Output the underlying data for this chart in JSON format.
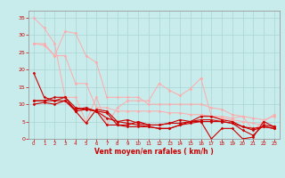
{
  "bg_color": "#c8ecec",
  "grid_color": "#aad4d4",
  "xlabel": "Vent moyen/en rafales ( km/h )",
  "xlabel_color": "#cc0000",
  "tick_color": "#cc0000",
  "xlim": [
    -0.5,
    23.5
  ],
  "ylim": [
    0,
    37
  ],
  "yticks": [
    0,
    5,
    10,
    15,
    20,
    25,
    30,
    35
  ],
  "xticks": [
    0,
    1,
    2,
    3,
    4,
    5,
    6,
    7,
    8,
    9,
    10,
    11,
    12,
    13,
    14,
    15,
    16,
    17,
    18,
    19,
    20,
    21,
    22,
    23
  ],
  "series": [
    {
      "x": [
        0,
        1,
        2,
        3,
        4,
        5,
        6,
        7,
        8,
        9,
        10,
        11,
        12,
        13,
        14,
        15,
        16,
        17,
        18,
        19,
        20,
        21,
        22,
        23
      ],
      "y": [
        35,
        32,
        27.5,
        12,
        12,
        5,
        12,
        4,
        9,
        11,
        11,
        11,
        16,
        14,
        12.5,
        14.5,
        17.5,
        6.5,
        6.5,
        6,
        6.5,
        2.5,
        5,
        7
      ],
      "color": "#ffaaaa",
      "lw": 0.7,
      "marker": "D",
      "ms": 1.5
    },
    {
      "x": [
        0,
        1,
        2,
        3,
        4,
        5,
        6,
        7,
        8,
        9,
        10,
        11,
        12,
        13,
        14,
        15,
        16,
        17,
        18,
        19,
        20,
        21,
        22,
        23
      ],
      "y": [
        27.5,
        27.5,
        24,
        31,
        30.5,
        24,
        22,
        12,
        12,
        12,
        12,
        10,
        10,
        10,
        10,
        10,
        10,
        9,
        8.5,
        7,
        6.5,
        6,
        5.5,
        6.5
      ],
      "color": "#ffaaaa",
      "lw": 0.7,
      "marker": "D",
      "ms": 1.5
    },
    {
      "x": [
        0,
        1,
        2,
        3,
        4,
        5,
        6,
        7,
        8,
        9,
        10,
        11,
        12,
        13,
        14,
        15,
        16,
        17,
        18,
        19,
        20,
        21,
        22,
        23
      ],
      "y": [
        27.5,
        27,
        24,
        24,
        16,
        16,
        9,
        9,
        8,
        8,
        8,
        8,
        8,
        7.5,
        7.5,
        7,
        7,
        6.5,
        6,
        5.5,
        5,
        4.5,
        4,
        3.5
      ],
      "color": "#ffaaaa",
      "lw": 0.7,
      "marker": "D",
      "ms": 1.5
    },
    {
      "x": [
        0,
        1,
        2,
        3,
        4,
        5,
        6,
        7,
        8,
        9,
        10,
        11,
        12,
        13,
        14,
        15,
        16,
        17,
        18,
        19,
        20,
        21,
        22,
        23
      ],
      "y": [
        19,
        12,
        11,
        11,
        8.5,
        9,
        8,
        4,
        4,
        3.5,
        3.5,
        3.5,
        3,
        3,
        4,
        5,
        5,
        0,
        3,
        3,
        0,
        0.5,
        5,
        3.5
      ],
      "color": "#cc0000",
      "lw": 0.8,
      "marker": "D",
      "ms": 1.5
    },
    {
      "x": [
        0,
        1,
        2,
        3,
        4,
        5,
        6,
        7,
        8,
        9,
        10,
        11,
        12,
        13,
        14,
        15,
        16,
        17,
        18,
        19,
        20,
        21,
        22,
        23
      ],
      "y": [
        11,
        11,
        12,
        12,
        9,
        8.5,
        8,
        6,
        5,
        5.5,
        4.5,
        4,
        4,
        4.5,
        5.5,
        5,
        6.5,
        6.5,
        5.5,
        5,
        3.5,
        3,
        3.5,
        3
      ],
      "color": "#cc0000",
      "lw": 0.8,
      "marker": "D",
      "ms": 1.5
    },
    {
      "x": [
        0,
        1,
        2,
        3,
        4,
        5,
        6,
        7,
        8,
        9,
        10,
        11,
        12,
        13,
        14,
        15,
        16,
        17,
        18,
        19,
        20,
        21,
        22,
        23
      ],
      "y": [
        11,
        11,
        11,
        12,
        8,
        4.5,
        8.5,
        8,
        5,
        4.5,
        4,
        3.5,
        3,
        3,
        4,
        4.5,
        5,
        5,
        5,
        4.5,
        3.5,
        2.5,
        3.5,
        3
      ],
      "color": "#cc0000",
      "lw": 0.8,
      "marker": "D",
      "ms": 1.5
    },
    {
      "x": [
        0,
        1,
        2,
        3,
        4,
        5,
        6,
        7,
        8,
        9,
        10,
        11,
        12,
        13,
        14,
        15,
        16,
        17,
        18,
        19,
        20,
        21,
        22,
        23
      ],
      "y": [
        10,
        10.5,
        10,
        11,
        8,
        8.5,
        8,
        7.5,
        4,
        4,
        5,
        4,
        4,
        4.5,
        4.5,
        5,
        5.5,
        5.5,
        5,
        4.5,
        2.5,
        1,
        4,
        3.5
      ],
      "color": "#cc0000",
      "lw": 0.8,
      "marker": "D",
      "ms": 1.5
    }
  ]
}
